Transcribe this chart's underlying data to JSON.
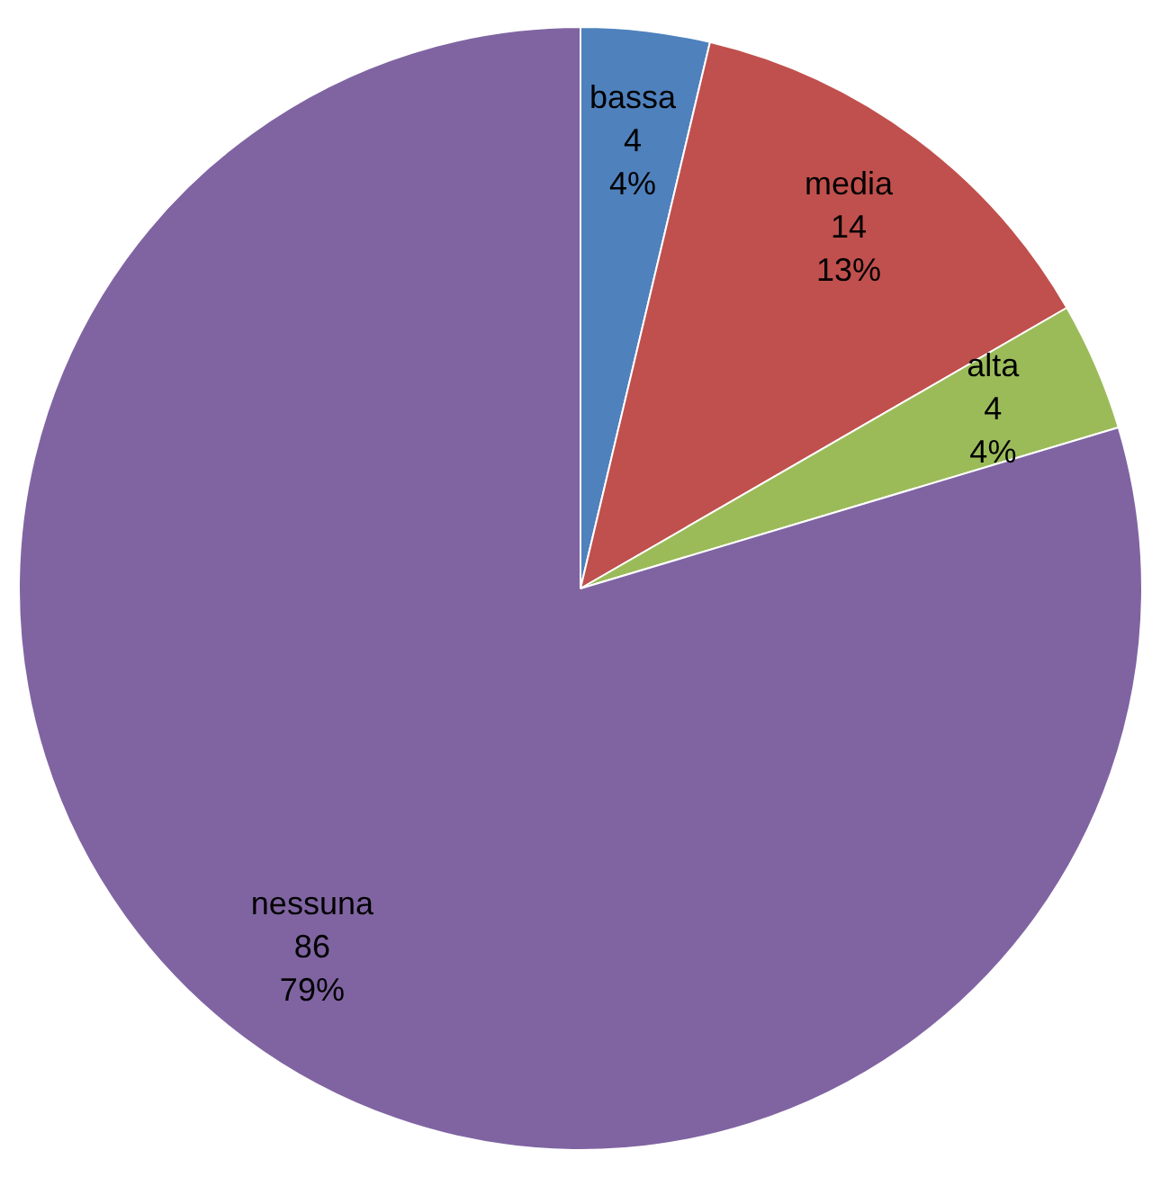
{
  "chart_data": {
    "type": "pie",
    "categories": [
      "bassa",
      "media",
      "alta",
      "nessuna"
    ],
    "values": [
      4,
      14,
      4,
      86
    ],
    "colors": [
      "#4f81bd",
      "#c0504d",
      "#9bbb59",
      "#8064a2"
    ],
    "value_labels": [
      "4\n4%",
      "14\n13%",
      "4\n4%",
      "86\n79%"
    ],
    "legend": false
  }
}
